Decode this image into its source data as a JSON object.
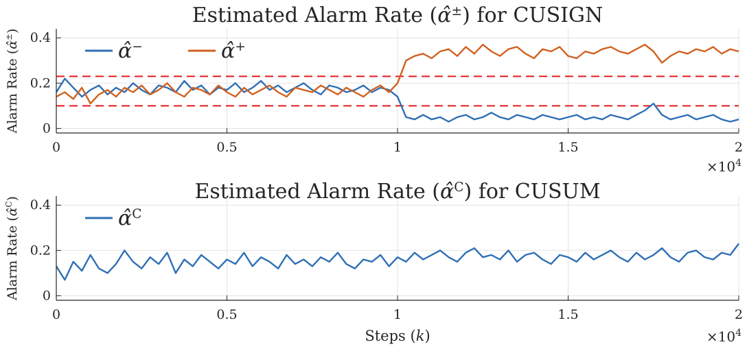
{
  "chart_data": [
    {
      "type": "line",
      "title": "Estimated Alarm Rate (α̂±) for CUSIGN",
      "ylabel": "Alarm Rate (α̂±)",
      "xlabel": "",
      "xlim": [
        0,
        20000
      ],
      "ylim": [
        -0.02,
        0.44
      ],
      "x_ticks": [
        0,
        5000,
        10000,
        15000,
        20000
      ],
      "x_tick_labels": [
        "0",
        "0.5",
        "1",
        "1.5",
        "2"
      ],
      "y_ticks": [
        0,
        0.2,
        0.4
      ],
      "y_tick_labels": [
        "0",
        "0.2",
        "0.4"
      ],
      "x_exponent": "×10",
      "x_exponent_power": "4",
      "grid": true,
      "legend": "top-left",
      "legend_orientation": "horizontal",
      "series": [
        {
          "name": "α̂−",
          "legend_sup": "−",
          "color": "#2f6fb5",
          "x": [
            0,
            250,
            500,
            750,
            1000,
            1250,
            1500,
            1750,
            2000,
            2250,
            2500,
            2750,
            3000,
            3250,
            3500,
            3750,
            4000,
            4250,
            4500,
            4750,
            5000,
            5250,
            5500,
            5750,
            6000,
            6250,
            6500,
            6750,
            7000,
            7250,
            7500,
            7750,
            8000,
            8250,
            8500,
            8750,
            9000,
            9250,
            9500,
            9750,
            10000,
            10250,
            10500,
            10750,
            11000,
            11250,
            11500,
            11750,
            12000,
            12250,
            12500,
            12750,
            13000,
            13250,
            13500,
            13750,
            14000,
            14250,
            14500,
            14750,
            15000,
            15250,
            15500,
            15750,
            16000,
            16250,
            16500,
            16750,
            17000,
            17250,
            17500,
            17750,
            18000,
            18250,
            18500,
            18750,
            19000,
            19250,
            19500,
            19750,
            20000
          ],
          "values": [
            0.16,
            0.22,
            0.18,
            0.14,
            0.17,
            0.19,
            0.15,
            0.18,
            0.16,
            0.2,
            0.17,
            0.15,
            0.19,
            0.18,
            0.16,
            0.21,
            0.17,
            0.19,
            0.15,
            0.18,
            0.17,
            0.2,
            0.16,
            0.18,
            0.21,
            0.17,
            0.19,
            0.16,
            0.18,
            0.2,
            0.17,
            0.15,
            0.19,
            0.18,
            0.16,
            0.17,
            0.19,
            0.16,
            0.18,
            0.17,
            0.14,
            0.05,
            0.04,
            0.06,
            0.04,
            0.05,
            0.03,
            0.05,
            0.06,
            0.04,
            0.05,
            0.07,
            0.05,
            0.04,
            0.06,
            0.05,
            0.04,
            0.06,
            0.05,
            0.04,
            0.05,
            0.06,
            0.04,
            0.05,
            0.04,
            0.06,
            0.05,
            0.04,
            0.06,
            0.08,
            0.11,
            0.06,
            0.04,
            0.05,
            0.06,
            0.04,
            0.05,
            0.06,
            0.04,
            0.03,
            0.04
          ]
        },
        {
          "name": "α̂+",
          "legend_sup": "+",
          "color": "#d1611f",
          "x": [
            0,
            250,
            500,
            750,
            1000,
            1250,
            1500,
            1750,
            2000,
            2250,
            2500,
            2750,
            3000,
            3250,
            3500,
            3750,
            4000,
            4250,
            4500,
            4750,
            5000,
            5250,
            5500,
            5750,
            6000,
            6250,
            6500,
            6750,
            7000,
            7250,
            7500,
            7750,
            8000,
            8250,
            8500,
            8750,
            9000,
            9250,
            9500,
            9750,
            10000,
            10250,
            10500,
            10750,
            11000,
            11250,
            11500,
            11750,
            12000,
            12250,
            12500,
            12750,
            13000,
            13250,
            13500,
            13750,
            14000,
            14250,
            14500,
            14750,
            15000,
            15250,
            15500,
            15750,
            16000,
            16250,
            16500,
            16750,
            17000,
            17250,
            17500,
            17750,
            18000,
            18250,
            18500,
            18750,
            19000,
            19250,
            19500,
            19750,
            20000
          ],
          "values": [
            0.14,
            0.16,
            0.13,
            0.18,
            0.11,
            0.15,
            0.17,
            0.14,
            0.18,
            0.16,
            0.19,
            0.15,
            0.17,
            0.2,
            0.16,
            0.14,
            0.18,
            0.17,
            0.15,
            0.19,
            0.16,
            0.14,
            0.18,
            0.15,
            0.17,
            0.19,
            0.16,
            0.14,
            0.18,
            0.17,
            0.16,
            0.19,
            0.17,
            0.15,
            0.18,
            0.16,
            0.14,
            0.17,
            0.19,
            0.16,
            0.2,
            0.3,
            0.32,
            0.33,
            0.31,
            0.34,
            0.35,
            0.32,
            0.36,
            0.33,
            0.37,
            0.34,
            0.32,
            0.35,
            0.36,
            0.33,
            0.31,
            0.35,
            0.34,
            0.36,
            0.32,
            0.31,
            0.34,
            0.33,
            0.35,
            0.36,
            0.34,
            0.33,
            0.35,
            0.37,
            0.34,
            0.29,
            0.32,
            0.34,
            0.33,
            0.35,
            0.34,
            0.36,
            0.33,
            0.35,
            0.34
          ]
        }
      ],
      "reference_lines": [
        {
          "y": 0.23,
          "style": "dashed",
          "color": "#e41a1c"
        },
        {
          "y": 0.1,
          "style": "dashed",
          "color": "#e41a1c"
        }
      ]
    },
    {
      "type": "line",
      "title": "Estimated Alarm Rate (α̂C) for CUSUM",
      "ylabel": "Alarm Rate (α̂C)",
      "xlabel": "Steps (k)",
      "xlim": [
        0,
        20000
      ],
      "ylim": [
        -0.02,
        0.44
      ],
      "x_ticks": [
        0,
        5000,
        10000,
        15000,
        20000
      ],
      "x_tick_labels": [
        "0",
        "0.5",
        "1",
        "1.5",
        "2"
      ],
      "y_ticks": [
        0,
        0.2,
        0.4
      ],
      "y_tick_labels": [
        "0",
        "0.2",
        "0.4"
      ],
      "x_exponent": "×10",
      "x_exponent_power": "4",
      "grid": true,
      "legend": "top-left",
      "series": [
        {
          "name": "α̂C",
          "legend_sup": "C",
          "color": "#2f6fb5",
          "x": [
            0,
            250,
            500,
            750,
            1000,
            1250,
            1500,
            1750,
            2000,
            2250,
            2500,
            2750,
            3000,
            3250,
            3500,
            3750,
            4000,
            4250,
            4500,
            4750,
            5000,
            5250,
            5500,
            5750,
            6000,
            6250,
            6500,
            6750,
            7000,
            7250,
            7500,
            7750,
            8000,
            8250,
            8500,
            8750,
            9000,
            9250,
            9500,
            9750,
            10000,
            10250,
            10500,
            10750,
            11000,
            11250,
            11500,
            11750,
            12000,
            12250,
            12500,
            12750,
            13000,
            13250,
            13500,
            13750,
            14000,
            14250,
            14500,
            14750,
            15000,
            15250,
            15500,
            15750,
            16000,
            16250,
            16500,
            16750,
            17000,
            17250,
            17500,
            17750,
            18000,
            18250,
            18500,
            18750,
            19000,
            19250,
            19500,
            19750,
            20000
          ],
          "values": [
            0.13,
            0.07,
            0.15,
            0.11,
            0.18,
            0.12,
            0.1,
            0.14,
            0.2,
            0.15,
            0.12,
            0.17,
            0.14,
            0.19,
            0.1,
            0.16,
            0.13,
            0.18,
            0.15,
            0.12,
            0.16,
            0.14,
            0.19,
            0.13,
            0.17,
            0.15,
            0.12,
            0.18,
            0.14,
            0.16,
            0.13,
            0.17,
            0.15,
            0.19,
            0.14,
            0.12,
            0.16,
            0.15,
            0.18,
            0.13,
            0.17,
            0.15,
            0.19,
            0.16,
            0.18,
            0.2,
            0.17,
            0.15,
            0.19,
            0.21,
            0.17,
            0.18,
            0.16,
            0.2,
            0.15,
            0.18,
            0.19,
            0.16,
            0.14,
            0.18,
            0.17,
            0.15,
            0.19,
            0.16,
            0.18,
            0.2,
            0.17,
            0.15,
            0.19,
            0.16,
            0.18,
            0.21,
            0.17,
            0.15,
            0.19,
            0.2,
            0.17,
            0.16,
            0.19,
            0.18,
            0.23
          ]
        }
      ]
    }
  ]
}
